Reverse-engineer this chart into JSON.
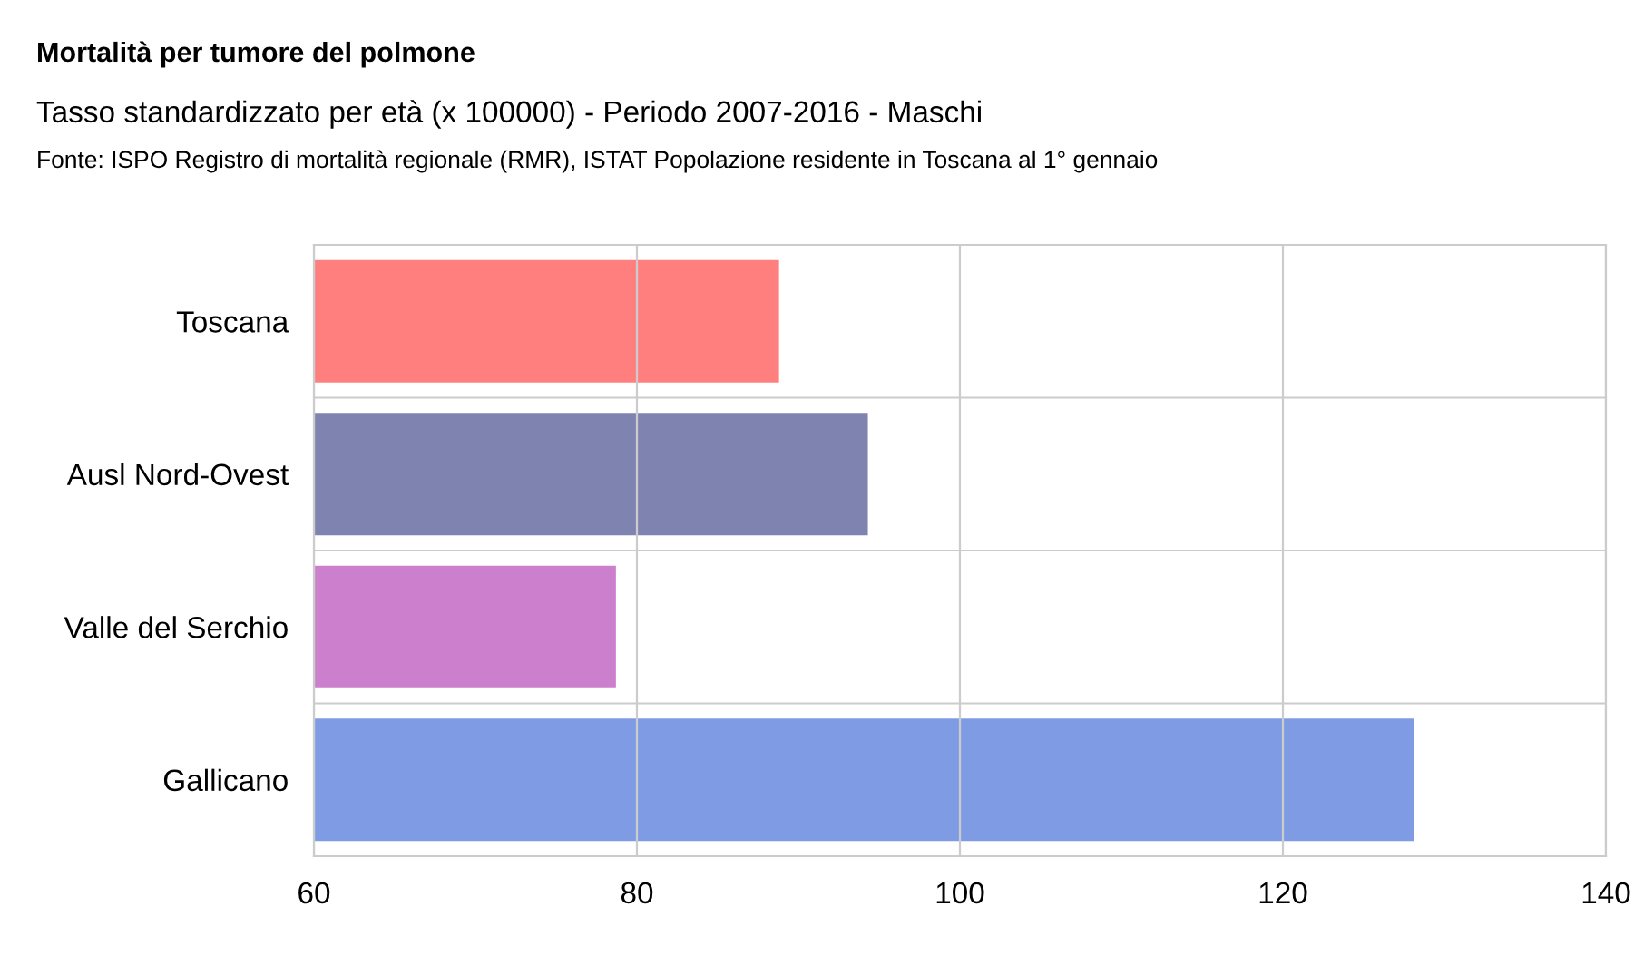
{
  "chart_data": {
    "type": "bar",
    "orientation": "horizontal",
    "title": "Mortalità per tumore del polmone",
    "subtitle": "Tasso standardizzato per età (x 100000) - Periodo 2007-2016 - Maschi",
    "annotations": [
      "Fonte: ISPO Registro di mortalità regionale (RMR), ISTAT Popolazione residente in Toscana al 1° gennaio"
    ],
    "categories": [
      "Toscana",
      "Ausl Nord-Ovest",
      "Valle del Serchio",
      "Gallicano"
    ],
    "values": [
      88.8,
      94.3,
      78.7,
      128.1
    ],
    "colors": [
      "#ff7f7f",
      "#7f83b0",
      "#cc7fcc",
      "#7f9be3"
    ],
    "xlim": [
      60,
      140
    ],
    "xticks": [
      60,
      80,
      100,
      120,
      140
    ],
    "grid": true,
    "legend": false
  }
}
